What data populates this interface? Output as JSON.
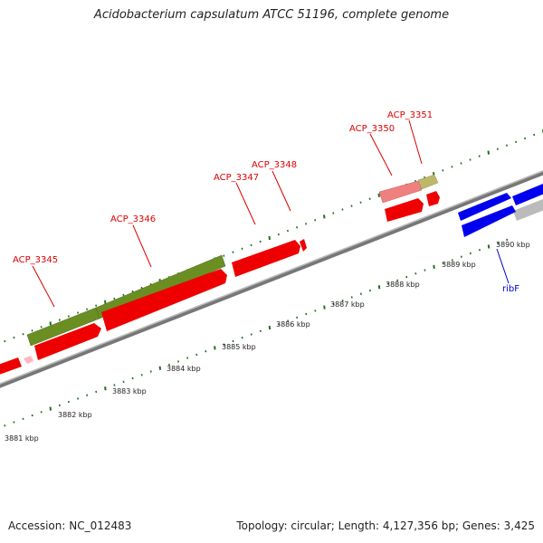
{
  "title": "Acidobacterium capsulatum ATCC 51196, complete genome",
  "footer": {
    "accession": "Accession: NC_012483",
    "summary": "Topology: circular; Length: 4,127,356 bp; Genes: 3,425"
  },
  "colors": {
    "cds": "#ff0000",
    "gene_olive": "#6b8e23",
    "gene_pink": "#f08080",
    "gene_khaki": "#bdb76b",
    "gene_blue": "#0000ff",
    "gene_gray": "#bbbbbb",
    "tick": "#207020",
    "label_red": "#dd0000",
    "label_blue": "#0000cc"
  },
  "gene_labels": [
    {
      "text": "ACP_3345",
      "color": "red"
    },
    {
      "text": "ACP_3346",
      "color": "red"
    },
    {
      "text": "ACP_3347",
      "color": "red"
    },
    {
      "text": "ACP_3348",
      "color": "red"
    },
    {
      "text": "ACP_3350",
      "color": "red"
    },
    {
      "text": "ACP_3351",
      "color": "red"
    },
    {
      "text": "ribF",
      "color": "blue"
    }
  ],
  "scale_labels": [
    "3881 kbp",
    "3882 kbp",
    "3883 kbp",
    "3884 kbp",
    "3885 kbp",
    "3886 kbp",
    "3887 kbp",
    "3888 kbp",
    "3889 kbp",
    "3890 kbp"
  ]
}
